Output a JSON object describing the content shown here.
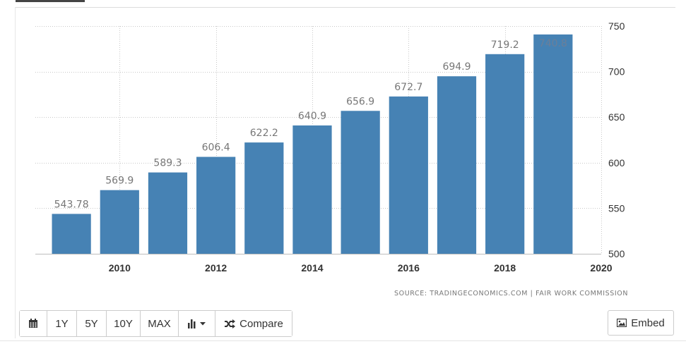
{
  "chart_data": {
    "type": "bar",
    "x": [
      2009,
      2010,
      2011,
      2012,
      2013,
      2014,
      2015,
      2016,
      2017,
      2018,
      2019
    ],
    "values": [
      543.78,
      569.9,
      589.3,
      606.4,
      622.2,
      640.9,
      656.9,
      672.7,
      694.9,
      719.2,
      740.8
    ],
    "value_labels": [
      "543.78",
      "569.9",
      "589.3",
      "606.4",
      "622.2",
      "640.9",
      "656.9",
      "672.7",
      "694.9",
      "719.2",
      "740.8"
    ],
    "x_ticks": [
      "2010",
      "2012",
      "2014",
      "2016",
      "2018",
      "2020"
    ],
    "x_tick_values": [
      2010,
      2012,
      2014,
      2016,
      2018,
      2020
    ],
    "y_ticks": [
      "500",
      "550",
      "600",
      "650",
      "700",
      "750"
    ],
    "y_tick_values": [
      500,
      550,
      600,
      650,
      700,
      750
    ],
    "ylim": [
      500,
      750
    ],
    "xlim": [
      2008.25,
      2020
    ],
    "y_axis_side": "right",
    "grid": true,
    "bar_color": "#4682b4",
    "title": "",
    "xlabel": "",
    "ylabel": ""
  },
  "source": "SOURCE: TRADINGECONOMICS.COM | FAIR WORK COMMISSION",
  "toolbar": {
    "calendar_icon": "calendar-icon",
    "btn_1y": "1Y",
    "btn_5y": "5Y",
    "btn_10y": "10Y",
    "btn_max": "MAX",
    "chart_type_icon": "bar-chart-icon",
    "compare_icon": "shuffle-icon",
    "compare_label": "Compare"
  },
  "embed": {
    "icon": "image-icon",
    "label": "Embed"
  }
}
